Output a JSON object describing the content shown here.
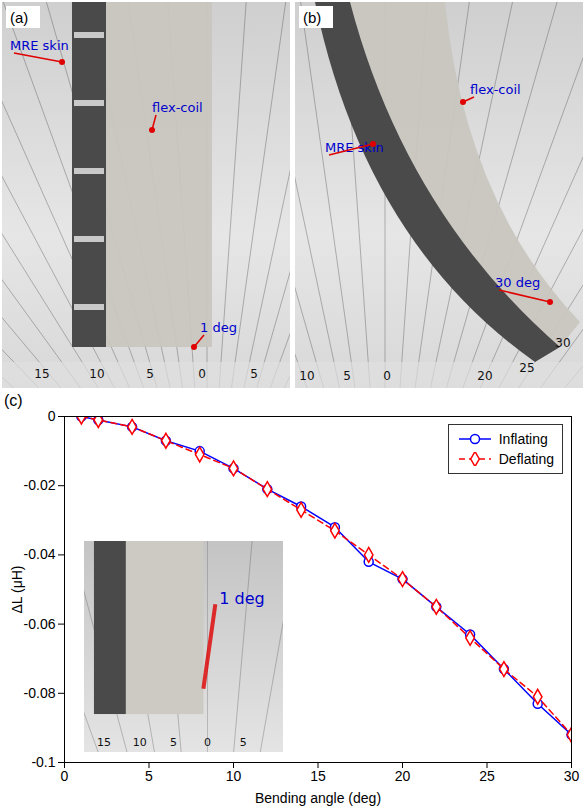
{
  "photos": [
    {
      "panel": "(a)",
      "labels": {
        "skin": "MRE skin",
        "coil": "flex-coil",
        "angle": "1 deg"
      },
      "scale_labels": [
        "15",
        "10",
        "5",
        "0",
        "5"
      ]
    },
    {
      "panel": "(b)",
      "labels": {
        "skin": "MRE skin",
        "coil": "flex-coil",
        "angle": "30 deg"
      },
      "scale_labels": [
        "10",
        "5",
        "0",
        "20",
        "25",
        "30"
      ]
    }
  ],
  "chart_data": {
    "panel": "(c)",
    "type": "line",
    "xlabel": "Bending angle (deg)",
    "ylabel": "ΔL (μH)",
    "x": [
      1,
      2,
      4,
      6,
      8,
      10,
      12,
      14,
      16,
      18,
      20,
      22,
      24,
      26,
      28,
      30
    ],
    "series": [
      {
        "name": "Inflating",
        "color": "#0000ff",
        "marker": "circle",
        "line_style": "solid",
        "values": [
          0,
          -0.001,
          -0.003,
          -0.007,
          -0.01,
          -0.015,
          -0.021,
          -0.026,
          -0.032,
          -0.042,
          -0.047,
          -0.055,
          -0.063,
          -0.073,
          -0.083,
          -0.092
        ]
      },
      {
        "name": "Deflating",
        "color": "#ff0000",
        "marker": "diamond",
        "line_style": "dashed",
        "values": [
          0,
          -0.001,
          -0.003,
          -0.007,
          -0.011,
          -0.015,
          -0.021,
          -0.027,
          -0.033,
          -0.04,
          -0.047,
          -0.055,
          -0.064,
          -0.073,
          -0.081,
          -0.092
        ]
      }
    ],
    "xlim": [
      0,
      30
    ],
    "xticks": [
      0,
      5,
      10,
      15,
      20,
      25,
      30
    ],
    "ylim": [
      -0.1,
      0
    ],
    "yticks": [
      -0.1,
      -0.08,
      -0.06,
      -0.04,
      -0.02,
      0
    ],
    "grid": false,
    "legend": "top-right",
    "inset": {
      "label": "1 deg",
      "scale_labels": [
        "15",
        "10",
        "5",
        "0",
        "5"
      ]
    }
  }
}
